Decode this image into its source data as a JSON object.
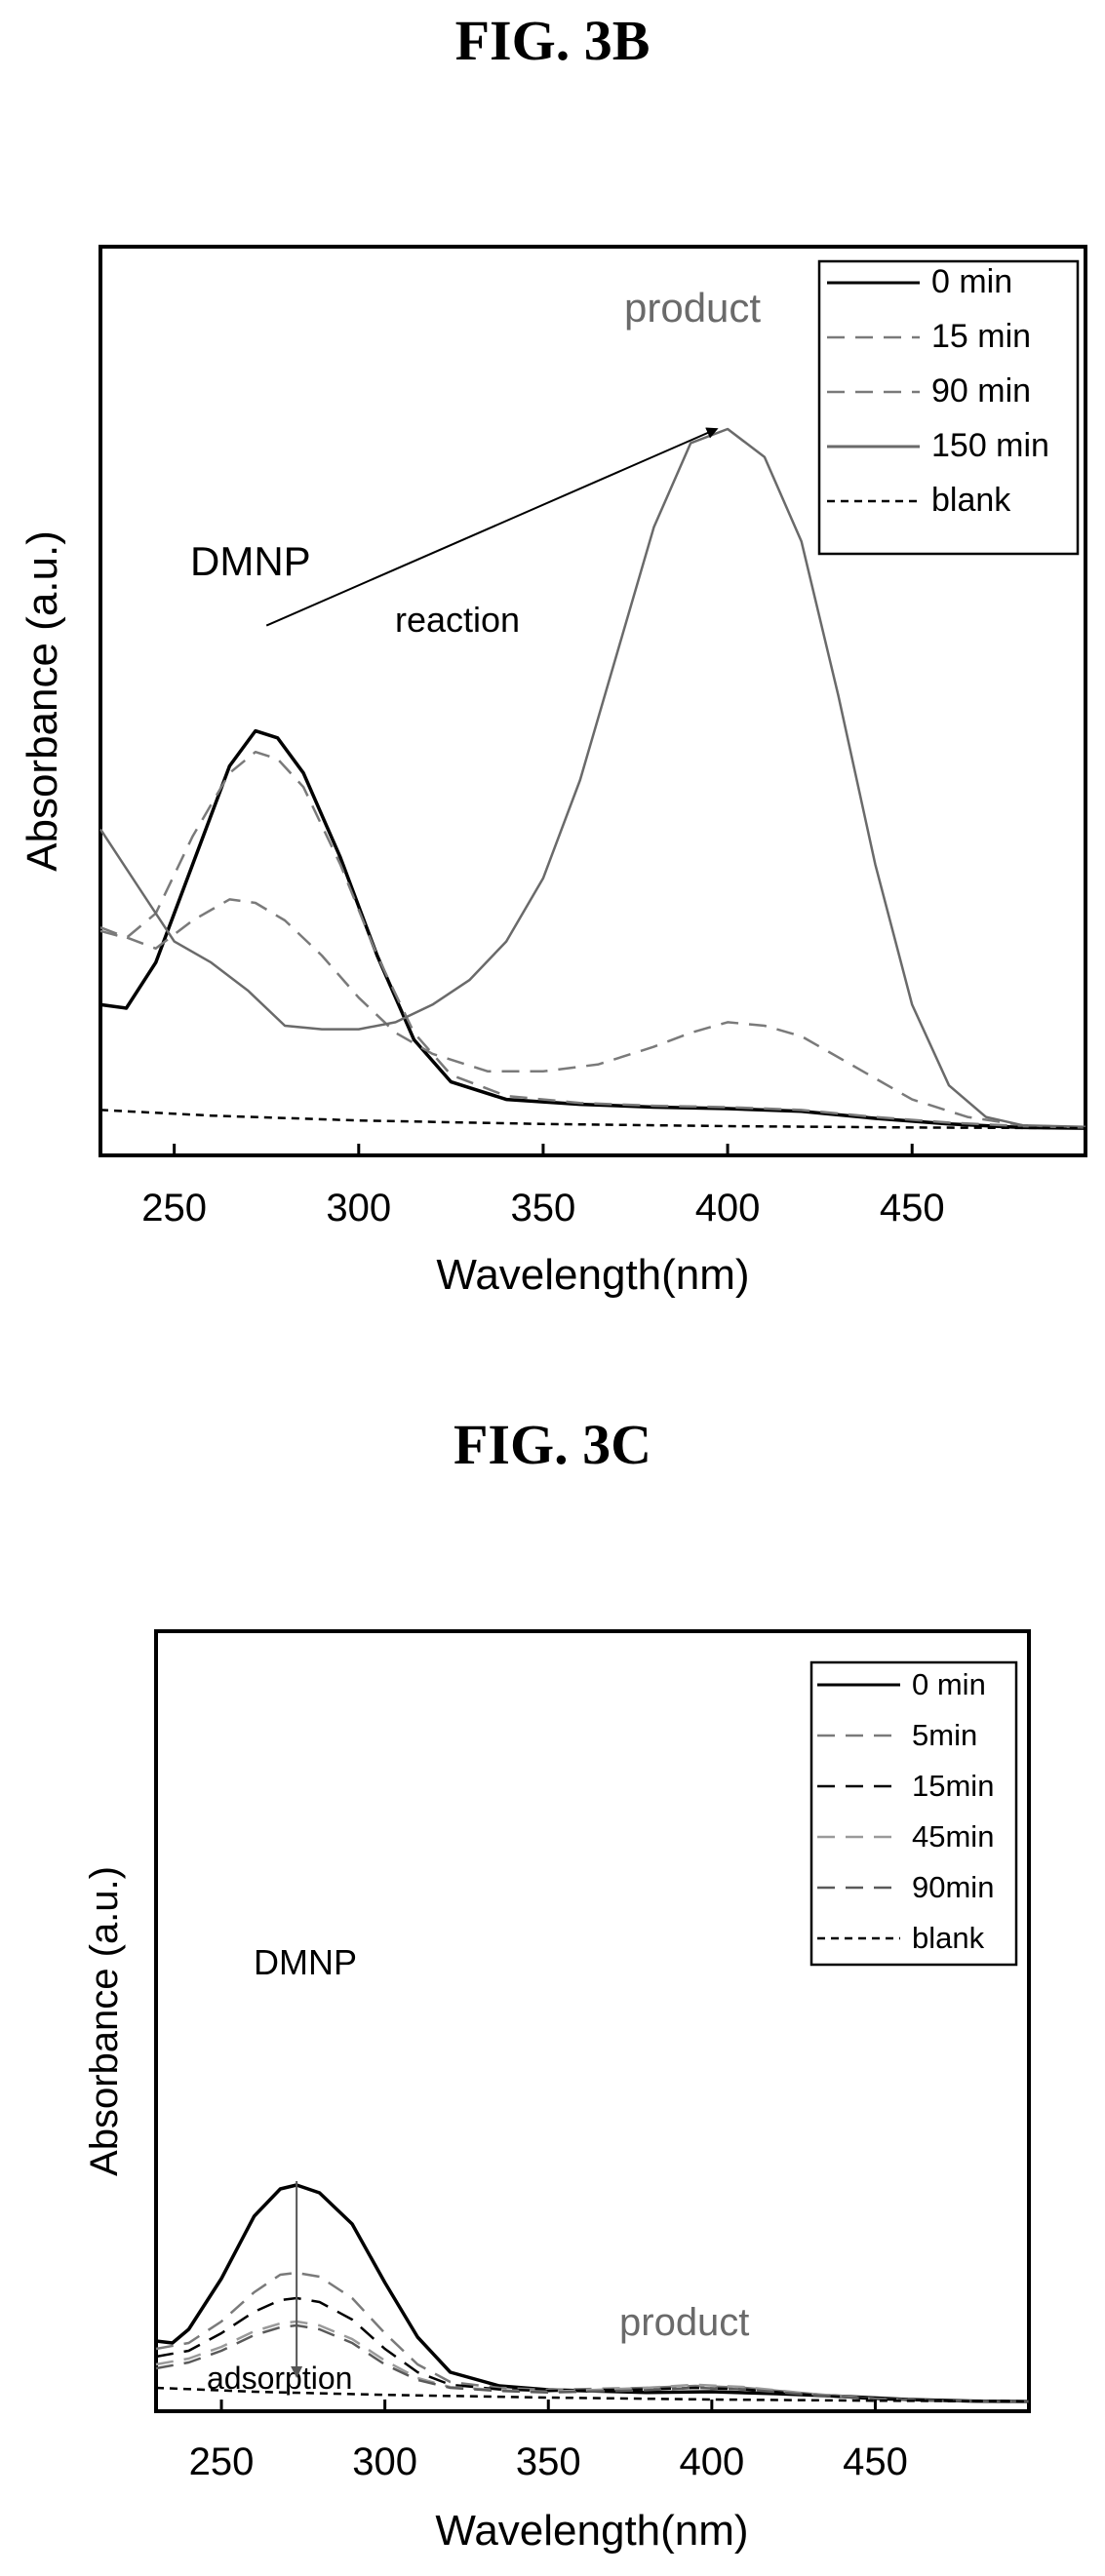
{
  "figures": {
    "b_title": "FIG. 3B",
    "c_title": "FIG. 3C"
  },
  "chart_data": [
    {
      "type": "line",
      "title": "FIG. 3B",
      "xlabel": "Wavelength(nm)",
      "ylabel": "Absorbance (a.u.)",
      "xlim": [
        230,
        497
      ],
      "ylim": [
        0,
        1.0
      ],
      "xticks": [
        250,
        300,
        350,
        400,
        450
      ],
      "y_ticks_shown": false,
      "grid": false,
      "legend_position": "top-right",
      "annotations": {
        "dmnp": "DMNP",
        "product": "product",
        "reaction": "reaction"
      },
      "arrow": {
        "from": [
          275,
          0.72
        ],
        "to": [
          397,
          1.0
        ]
      },
      "series": [
        {
          "name": "0 min",
          "style": "solid",
          "color": "#000000",
          "x": [
            230,
            237,
            245,
            255,
            265,
            272,
            278,
            285,
            295,
            305,
            315,
            325,
            340,
            360,
            380,
            400,
            420,
            440,
            460,
            480,
            497
          ],
          "y": [
            0.18,
            0.175,
            0.24,
            0.38,
            0.52,
            0.57,
            0.56,
            0.51,
            0.39,
            0.25,
            0.13,
            0.07,
            0.045,
            0.038,
            0.034,
            0.032,
            0.028,
            0.018,
            0.01,
            0.005,
            0.004
          ]
        },
        {
          "name": "15 min",
          "style": "dashed",
          "color": "#7a7a7a",
          "x": [
            230,
            237,
            245,
            255,
            265,
            272,
            278,
            285,
            295,
            305,
            315,
            325,
            340,
            360,
            380,
            400,
            420,
            440,
            460,
            480,
            497
          ],
          "y": [
            0.285,
            0.275,
            0.31,
            0.42,
            0.51,
            0.54,
            0.53,
            0.49,
            0.38,
            0.25,
            0.14,
            0.08,
            0.05,
            0.04,
            0.036,
            0.034,
            0.03,
            0.02,
            0.012,
            0.007,
            0.005
          ]
        },
        {
          "name": "90 min",
          "style": "dashed",
          "color": "#7a7a7a",
          "x": [
            230,
            245,
            255,
            265,
            272,
            280,
            290,
            300,
            310,
            320,
            335,
            350,
            365,
            380,
            390,
            400,
            410,
            420,
            435,
            450,
            465,
            480,
            497
          ],
          "y": [
            0.29,
            0.26,
            0.3,
            0.33,
            0.325,
            0.3,
            0.25,
            0.19,
            0.14,
            0.11,
            0.085,
            0.085,
            0.095,
            0.12,
            0.14,
            0.155,
            0.15,
            0.135,
            0.09,
            0.045,
            0.02,
            0.008,
            0.005
          ]
        },
        {
          "name": "150 min",
          "style": "solid",
          "color": "#6a6a6a",
          "x": [
            230,
            240,
            250,
            260,
            270,
            280,
            290,
            300,
            310,
            320,
            330,
            340,
            350,
            360,
            370,
            380,
            390,
            400,
            410,
            420,
            430,
            440,
            450,
            460,
            470,
            480,
            497
          ],
          "y": [
            0.43,
            0.35,
            0.27,
            0.24,
            0.2,
            0.15,
            0.145,
            0.145,
            0.155,
            0.18,
            0.215,
            0.27,
            0.36,
            0.5,
            0.68,
            0.86,
            0.98,
            1.0,
            0.96,
            0.84,
            0.62,
            0.38,
            0.18,
            0.065,
            0.02,
            0.008,
            0.006
          ]
        },
        {
          "name": "blank",
          "style": "dotted",
          "color": "#000000",
          "x": [
            230,
            260,
            300,
            350,
            400,
            450,
            497
          ],
          "y": [
            0.03,
            0.022,
            0.015,
            0.01,
            0.007,
            0.005,
            0.004
          ]
        }
      ]
    },
    {
      "type": "line",
      "title": "FIG. 3C",
      "xlabel": "Wavelength(nm)",
      "ylabel": "Absorbance (a.u.)",
      "xlim": [
        230,
        497
      ],
      "ylim": [
        0,
        1.0
      ],
      "xticks": [
        250,
        300,
        350,
        400,
        450
      ],
      "y_ticks_shown": false,
      "grid": false,
      "legend_position": "top-right",
      "annotations": {
        "dmnp": "DMNP",
        "product": "product",
        "adsorption": "adsorption"
      },
      "arrow": {
        "from": [
          273,
          0.57
        ],
        "to": [
          273,
          0.07
        ]
      },
      "series": [
        {
          "name": "0 min",
          "style": "solid",
          "color": "#000000",
          "x": [
            230,
            235,
            240,
            250,
            260,
            268,
            273,
            280,
            290,
            300,
            310,
            320,
            335,
            350,
            380,
            400,
            420,
            440,
            460,
            480,
            497
          ],
          "y": [
            0.16,
            0.155,
            0.19,
            0.32,
            0.48,
            0.55,
            0.56,
            0.54,
            0.46,
            0.31,
            0.17,
            0.08,
            0.045,
            0.035,
            0.028,
            0.03,
            0.025,
            0.018,
            0.01,
            0.006,
            0.005
          ]
        },
        {
          "name": "5min",
          "style": "dashed",
          "color": "#7a7a7a",
          "x": [
            230,
            240,
            250,
            260,
            268,
            273,
            280,
            290,
            300,
            310,
            320,
            335,
            350,
            380,
            395,
            410,
            430,
            450,
            470,
            497
          ],
          "y": [
            0.14,
            0.155,
            0.21,
            0.285,
            0.33,
            0.335,
            0.325,
            0.27,
            0.18,
            0.1,
            0.055,
            0.04,
            0.035,
            0.04,
            0.045,
            0.04,
            0.025,
            0.012,
            0.007,
            0.005
          ]
        },
        {
          "name": "15min",
          "style": "dashed",
          "color": "#000000",
          "x": [
            230,
            240,
            250,
            260,
            268,
            273,
            280,
            290,
            300,
            310,
            320,
            335,
            350,
            380,
            395,
            410,
            430,
            450,
            470,
            497
          ],
          "y": [
            0.12,
            0.135,
            0.18,
            0.235,
            0.265,
            0.27,
            0.26,
            0.215,
            0.14,
            0.08,
            0.048,
            0.036,
            0.032,
            0.036,
            0.04,
            0.036,
            0.022,
            0.011,
            0.007,
            0.005
          ]
        },
        {
          "name": "45min",
          "style": "dashed",
          "color": "#9a9a9a",
          "x": [
            230,
            240,
            250,
            260,
            268,
            273,
            280,
            290,
            300,
            310,
            320,
            335,
            350,
            380,
            395,
            410,
            430,
            450,
            470,
            497
          ],
          "y": [
            0.1,
            0.115,
            0.145,
            0.185,
            0.205,
            0.21,
            0.2,
            0.165,
            0.11,
            0.065,
            0.042,
            0.034,
            0.03,
            0.04,
            0.048,
            0.042,
            0.025,
            0.012,
            0.007,
            0.005
          ]
        },
        {
          "name": "90min",
          "style": "dashed",
          "color": "#5a5a5a",
          "x": [
            230,
            240,
            250,
            260,
            268,
            273,
            280,
            290,
            300,
            310,
            320,
            335,
            350,
            380,
            395,
            410,
            430,
            450,
            470,
            497
          ],
          "y": [
            0.09,
            0.105,
            0.135,
            0.175,
            0.195,
            0.2,
            0.19,
            0.155,
            0.1,
            0.06,
            0.04,
            0.032,
            0.028,
            0.034,
            0.04,
            0.036,
            0.022,
            0.011,
            0.007,
            0.005
          ]
        },
        {
          "name": "blank",
          "style": "dotted",
          "color": "#000000",
          "x": [
            230,
            260,
            300,
            350,
            400,
            450,
            497
          ],
          "y": [
            0.04,
            0.03,
            0.022,
            0.015,
            0.01,
            0.007,
            0.005
          ]
        }
      ]
    }
  ]
}
